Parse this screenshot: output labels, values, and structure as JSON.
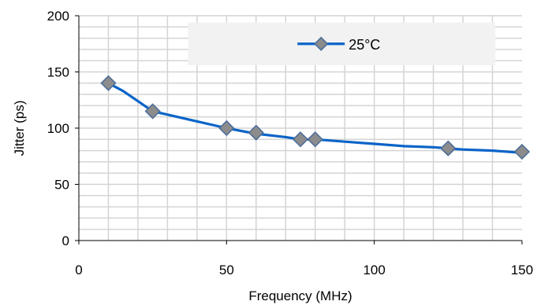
{
  "chart_data": {
    "type": "line",
    "title": "",
    "xlabel": "Frequency (MHz)",
    "ylabel": "Jitter (ps)",
    "xlim": [
      0,
      150
    ],
    "ylim": [
      0,
      200
    ],
    "x_ticks": [
      "0",
      "50",
      "100",
      "150"
    ],
    "y_ticks": [
      "0",
      "50",
      "100",
      "150",
      "200"
    ],
    "grid": true,
    "legend_position": "top-right",
    "series": [
      {
        "name": "25°C",
        "color": "#0a64c8",
        "marker_color": "#8c8c8c",
        "marker": "diamond",
        "line": [
          [
            10,
            140
          ],
          [
            15,
            133
          ],
          [
            20,
            124
          ],
          [
            25,
            115
          ],
          [
            30,
            112
          ],
          [
            40,
            106
          ],
          [
            50,
            100
          ],
          [
            60,
            95
          ],
          [
            70,
            92
          ],
          [
            75,
            90
          ],
          [
            80,
            90
          ],
          [
            90,
            88
          ],
          [
            100,
            86
          ],
          [
            110,
            84
          ],
          [
            120,
            83
          ],
          [
            125,
            82
          ],
          [
            130,
            81
          ],
          [
            140,
            80
          ],
          [
            150,
            78
          ]
        ],
        "markers": [
          [
            10,
            140
          ],
          [
            25,
            115
          ],
          [
            50,
            100
          ],
          [
            60,
            96
          ],
          [
            75,
            90
          ],
          [
            80,
            90
          ],
          [
            125,
            82
          ],
          [
            150,
            79
          ]
        ]
      }
    ]
  }
}
